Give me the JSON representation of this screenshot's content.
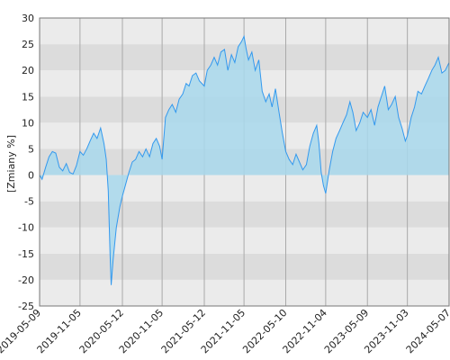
{
  "chart_data": {
    "type": "area",
    "title": "",
    "xlabel": "",
    "ylabel": "[Zmiany %]",
    "ylim": [
      -25,
      30
    ],
    "yticks": [
      -25,
      -20,
      -15,
      -10,
      -5,
      0,
      5,
      10,
      15,
      20,
      25,
      30
    ],
    "ytick_labels": [
      "-25",
      "-20",
      "-15",
      "-10",
      "-5",
      "0",
      "5",
      "10",
      "15",
      "20",
      "25",
      "30"
    ],
    "xlim": [
      "2019-05-09",
      "2024-05-07"
    ],
    "xticks": [
      "2019-05-09",
      "2019-11-05",
      "2020-05-12",
      "2020-11-05",
      "2021-05-12",
      "2021-11-05",
      "2022-05-10",
      "2022-11-04",
      "2023-05-09",
      "2023-11-03",
      "2024-05-07"
    ],
    "grid": true,
    "colors": {
      "line": "#3399ee",
      "fill": "#a8d8ec",
      "band_light": "#ebebeb",
      "band_dark": "#dcdcdc",
      "axis": "#777777",
      "vgrid": "#aaaaaa"
    },
    "series": [
      {
        "x": [
          "2019-05-09",
          "2019-05-20",
          "2019-06-05",
          "2019-06-20",
          "2019-07-05",
          "2019-07-20",
          "2019-08-05",
          "2019-08-20",
          "2019-09-05",
          "2019-09-20",
          "2019-10-05",
          "2019-10-20",
          "2019-11-05",
          "2019-11-20",
          "2019-12-05",
          "2019-12-20",
          "2020-01-05",
          "2020-01-20",
          "2020-02-05",
          "2020-02-20",
          "2020-03-01",
          "2020-03-10",
          "2020-03-18",
          "2020-03-23",
          "2020-04-01",
          "2020-04-15",
          "2020-05-01",
          "2020-05-12",
          "2020-05-25",
          "2020-06-10",
          "2020-06-25",
          "2020-07-10",
          "2020-07-25",
          "2020-08-10",
          "2020-08-25",
          "2020-09-10",
          "2020-09-25",
          "2020-10-10",
          "2020-10-25",
          "2020-11-05",
          "2020-11-20",
          "2020-12-05",
          "2020-12-20",
          "2021-01-05",
          "2021-01-20",
          "2021-02-05",
          "2021-02-20",
          "2021-03-05",
          "2021-03-20",
          "2021-04-05",
          "2021-04-20",
          "2021-05-12",
          "2021-05-25",
          "2021-06-10",
          "2021-06-25",
          "2021-07-10",
          "2021-07-25",
          "2021-08-10",
          "2021-08-25",
          "2021-09-10",
          "2021-09-25",
          "2021-10-10",
          "2021-10-25",
          "2021-11-05",
          "2021-11-15",
          "2021-11-25",
          "2021-12-10",
          "2021-12-25",
          "2022-01-10",
          "2022-01-25",
          "2022-02-10",
          "2022-02-25",
          "2022-03-10",
          "2022-03-25",
          "2022-04-10",
          "2022-04-25",
          "2022-05-10",
          "2022-05-25",
          "2022-06-10",
          "2022-06-25",
          "2022-07-10",
          "2022-07-25",
          "2022-08-10",
          "2022-08-25",
          "2022-09-10",
          "2022-09-25",
          "2022-10-05",
          "2022-10-15",
          "2022-10-25",
          "2022-11-04",
          "2022-11-20",
          "2022-12-05",
          "2022-12-20",
          "2023-01-05",
          "2023-01-20",
          "2023-02-05",
          "2023-02-20",
          "2023-03-05",
          "2023-03-20",
          "2023-04-05",
          "2023-04-20",
          "2023-05-09",
          "2023-05-25",
          "2023-06-10",
          "2023-06-25",
          "2023-07-10",
          "2023-07-25",
          "2023-08-10",
          "2023-08-25",
          "2023-09-10",
          "2023-09-25",
          "2023-10-10",
          "2023-10-25",
          "2023-11-03",
          "2023-11-20",
          "2023-12-05",
          "2023-12-20",
          "2024-01-05",
          "2024-01-20",
          "2024-02-05",
          "2024-02-20",
          "2024-03-05",
          "2024-03-20",
          "2024-04-05",
          "2024-04-20",
          "2024-05-07"
        ],
        "y": [
          0,
          -0.8,
          1.5,
          3.5,
          4.5,
          4.2,
          1.5,
          0.8,
          2.2,
          0.5,
          0.2,
          1.8,
          4.5,
          3.8,
          5.0,
          6.5,
          8.0,
          7.0,
          9.0,
          6.0,
          3.0,
          -3.0,
          -15.0,
          -21.0,
          -16.0,
          -10.0,
          -6.0,
          -4.0,
          -2.0,
          0.5,
          2.5,
          3.0,
          4.5,
          3.5,
          5.0,
          3.5,
          6.0,
          7.0,
          5.5,
          3.0,
          11.0,
          12.5,
          13.5,
          12.0,
          14.5,
          15.5,
          17.5,
          17.0,
          19.0,
          19.5,
          18.0,
          17.0,
          20.0,
          21.0,
          22.5,
          21.0,
          23.5,
          24.0,
          20.0,
          23.0,
          21.5,
          24.5,
          25.5,
          26.5,
          24.0,
          22.0,
          23.5,
          20.0,
          22.0,
          16.0,
          14.0,
          15.5,
          13.0,
          16.5,
          12.0,
          8.0,
          4.5,
          3.0,
          2.0,
          4.0,
          2.5,
          1.0,
          2.0,
          5.5,
          8.0,
          9.5,
          6.0,
          0.5,
          -2.0,
          -3.5,
          1.0,
          4.5,
          7.0,
          8.5,
          10.0,
          11.5,
          14.0,
          12.0,
          8.5,
          10.0,
          12.0,
          11.0,
          12.5,
          9.5,
          13.0,
          15.0,
          17.0,
          12.5,
          13.5,
          15.0,
          11.0,
          9.0,
          6.5,
          7.5,
          11.0,
          13.0,
          16.0,
          15.5,
          17.0,
          18.5,
          20.0,
          21.0,
          22.5,
          19.5,
          20.0,
          21.5
        ]
      }
    ]
  }
}
